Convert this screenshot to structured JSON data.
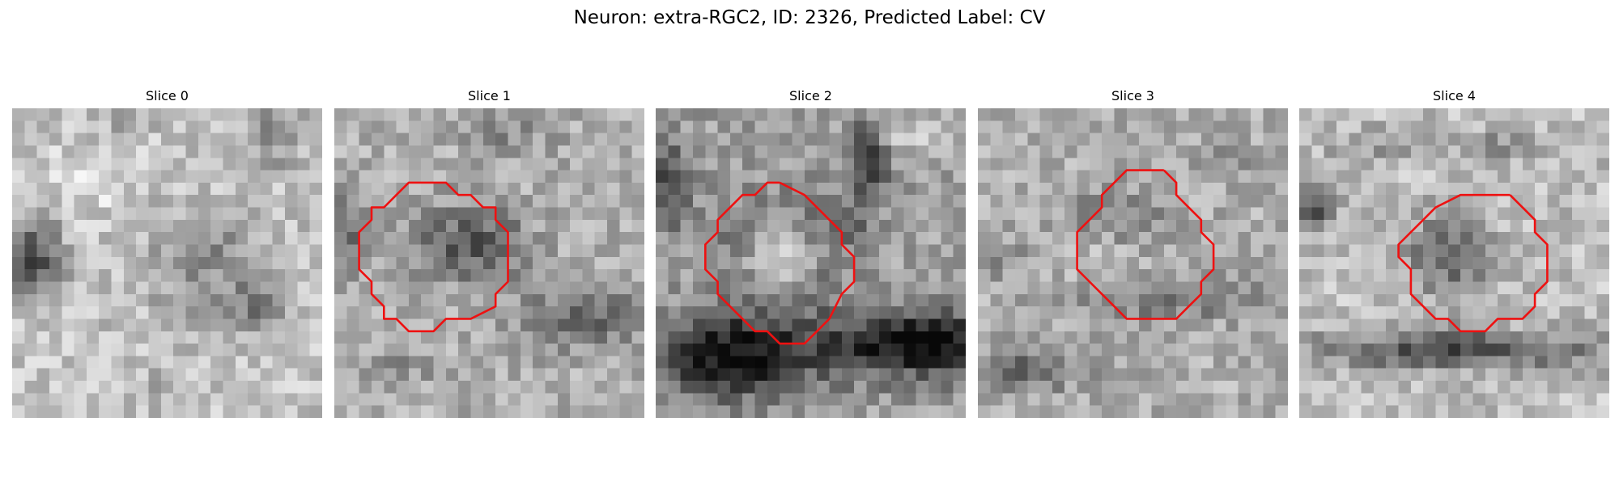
{
  "figure": {
    "title": "Neuron: extra-RGC2, ID: 2326, Predicted Label: CV"
  },
  "colors": {
    "contour": "#ee1111",
    "background": "#ffffff"
  },
  "panels": [
    {
      "title": "Slice 0",
      "contour_present": false
    },
    {
      "title": "Slice 1",
      "contour_present": true
    },
    {
      "title": "Slice 2",
      "contour_present": true
    },
    {
      "title": "Slice 3",
      "contour_present": true
    },
    {
      "title": "Slice 4",
      "contour_present": true
    }
  ]
}
